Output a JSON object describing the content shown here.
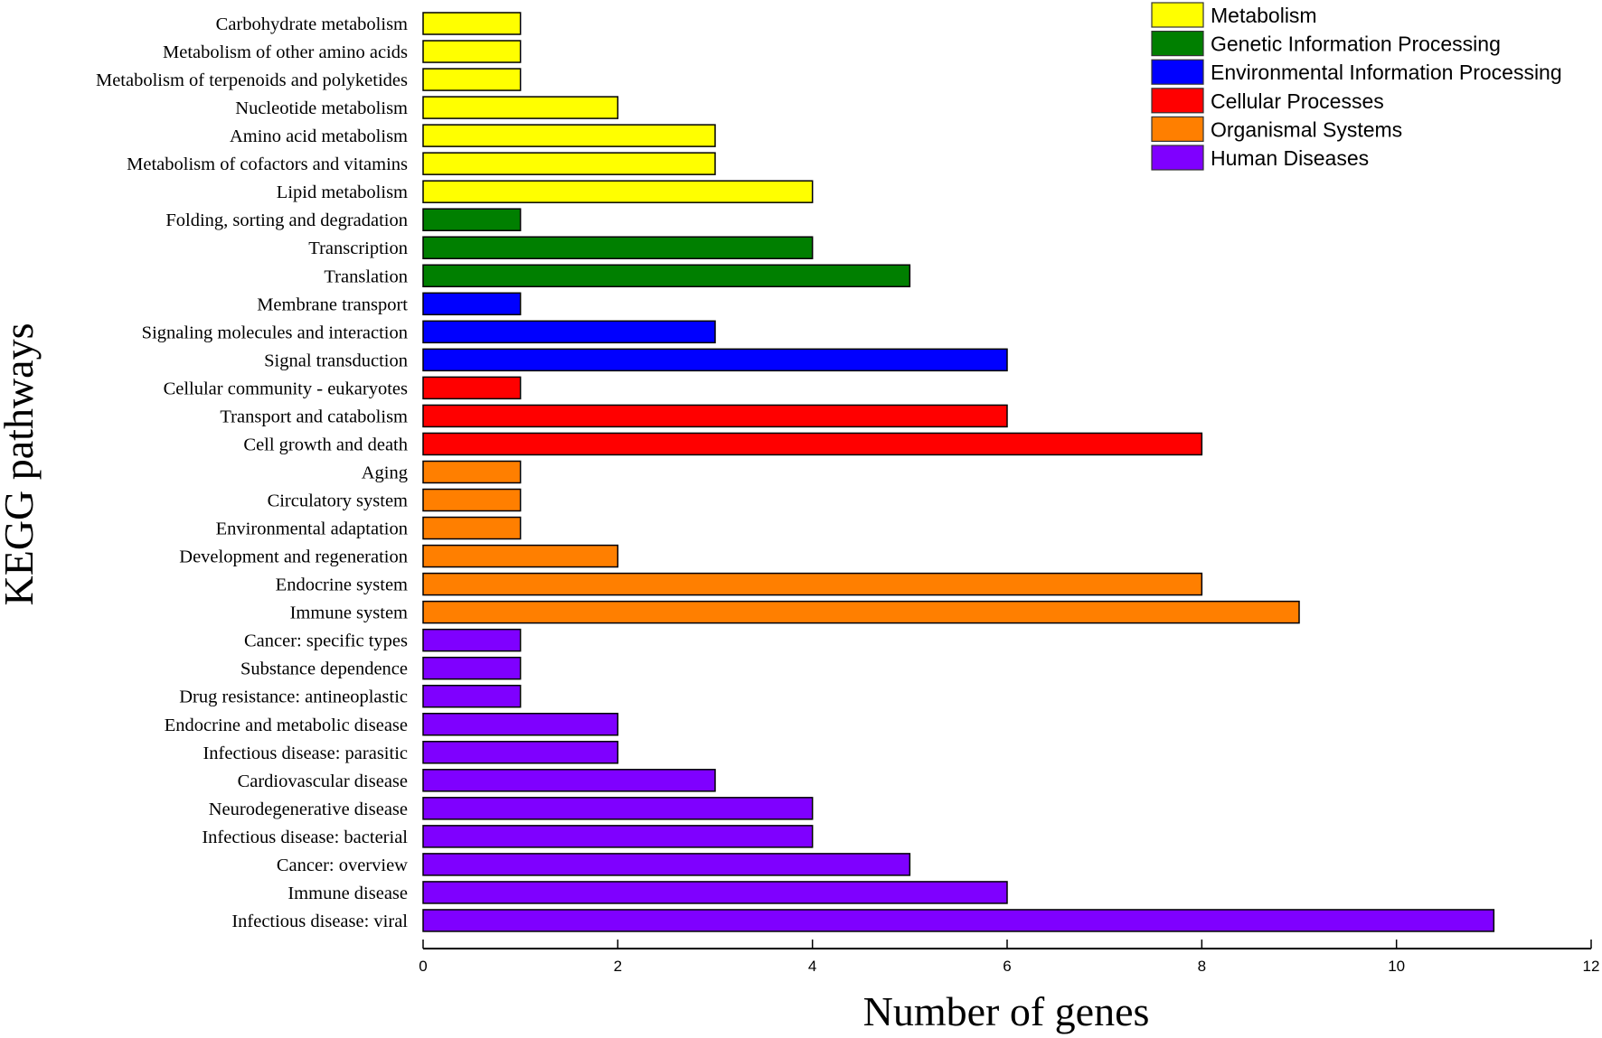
{
  "chart_data": {
    "type": "bar",
    "orientation": "horizontal",
    "xlabel": "Number of genes",
    "ylabel": "KEGG pathways",
    "xlim": [
      0,
      12
    ],
    "xticks": [
      "0",
      "2",
      "4",
      "6",
      "8",
      "10",
      "12"
    ],
    "grid": false,
    "legend_position": "top-right",
    "groups": [
      {
        "name": "Metabolism",
        "color": "#FFFF00"
      },
      {
        "name": "Genetic Information Processing",
        "color": "#007F00"
      },
      {
        "name": "Environmental Information Processing",
        "color": "#0000FF"
      },
      {
        "name": "Cellular Processes",
        "color": "#FF0000"
      },
      {
        "name": "Organismal Systems",
        "color": "#FF7F00"
      },
      {
        "name": "Human Diseases",
        "color": "#7F00FF"
      }
    ],
    "bars": [
      {
        "label": "Carbohydrate metabolism",
        "value": 1,
        "group": 0
      },
      {
        "label": "Metabolism of other amino acids",
        "value": 1,
        "group": 0
      },
      {
        "label": "Metabolism of terpenoids and polyketides",
        "value": 1,
        "group": 0
      },
      {
        "label": "Nucleotide metabolism",
        "value": 2,
        "group": 0
      },
      {
        "label": "Amino acid metabolism",
        "value": 3,
        "group": 0
      },
      {
        "label": "Metabolism of cofactors and vitamins",
        "value": 3,
        "group": 0
      },
      {
        "label": "Lipid metabolism",
        "value": 4,
        "group": 0
      },
      {
        "label": "Folding, sorting and degradation",
        "value": 1,
        "group": 1
      },
      {
        "label": "Transcription",
        "value": 4,
        "group": 1
      },
      {
        "label": "Translation",
        "value": 5,
        "group": 1
      },
      {
        "label": "Membrane transport",
        "value": 1,
        "group": 2
      },
      {
        "label": "Signaling molecules and interaction",
        "value": 3,
        "group": 2
      },
      {
        "label": "Signal transduction",
        "value": 6,
        "group": 2
      },
      {
        "label": "Cellular community - eukaryotes",
        "value": 1,
        "group": 3
      },
      {
        "label": "Transport and catabolism",
        "value": 6,
        "group": 3
      },
      {
        "label": "Cell growth and death",
        "value": 8,
        "group": 3
      },
      {
        "label": "Aging",
        "value": 1,
        "group": 4
      },
      {
        "label": "Circulatory system",
        "value": 1,
        "group": 4
      },
      {
        "label": "Environmental adaptation",
        "value": 1,
        "group": 4
      },
      {
        "label": "Development and regeneration",
        "value": 2,
        "group": 4
      },
      {
        "label": "Endocrine system",
        "value": 8,
        "group": 4
      },
      {
        "label": "Immune system",
        "value": 9,
        "group": 4
      },
      {
        "label": "Cancer: specific types",
        "value": 1,
        "group": 5
      },
      {
        "label": "Substance dependence",
        "value": 1,
        "group": 5
      },
      {
        "label": "Drug resistance: antineoplastic",
        "value": 1,
        "group": 5
      },
      {
        "label": "Endocrine and metabolic disease",
        "value": 2,
        "group": 5
      },
      {
        "label": "Infectious disease: parasitic",
        "value": 2,
        "group": 5
      },
      {
        "label": "Cardiovascular disease",
        "value": 3,
        "group": 5
      },
      {
        "label": "Neurodegenerative disease",
        "value": 4,
        "group": 5
      },
      {
        "label": "Infectious disease: bacterial",
        "value": 4,
        "group": 5
      },
      {
        "label": "Cancer: overview",
        "value": 5,
        "group": 5
      },
      {
        "label": "Immune disease",
        "value": 6,
        "group": 5
      },
      {
        "label": "Infectious disease: viral",
        "value": 11,
        "group": 5
      }
    ]
  }
}
